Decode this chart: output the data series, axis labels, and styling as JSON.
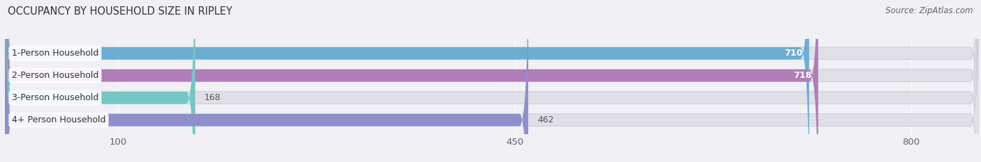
{
  "title": "OCCUPANCY BY HOUSEHOLD SIZE IN RIPLEY",
  "source": "Source: ZipAtlas.com",
  "categories": [
    "1-Person Household",
    "2-Person Household",
    "3-Person Household",
    "4+ Person Household"
  ],
  "values": [
    710,
    718,
    168,
    462
  ],
  "bar_colors": [
    "#6aaed6",
    "#b07db8",
    "#72c9c4",
    "#8f8fcc"
  ],
  "label_colors": [
    "white",
    "white",
    "black",
    "black"
  ],
  "x_ticks": [
    100,
    450,
    800
  ],
  "x_min": 0,
  "x_max": 860,
  "background_color": "#f0f0f5",
  "bar_background_color": "#e0e0e8",
  "title_fontsize": 10.5,
  "source_fontsize": 8.5,
  "value_fontsize": 9,
  "category_fontsize": 9,
  "bar_height": 0.55
}
